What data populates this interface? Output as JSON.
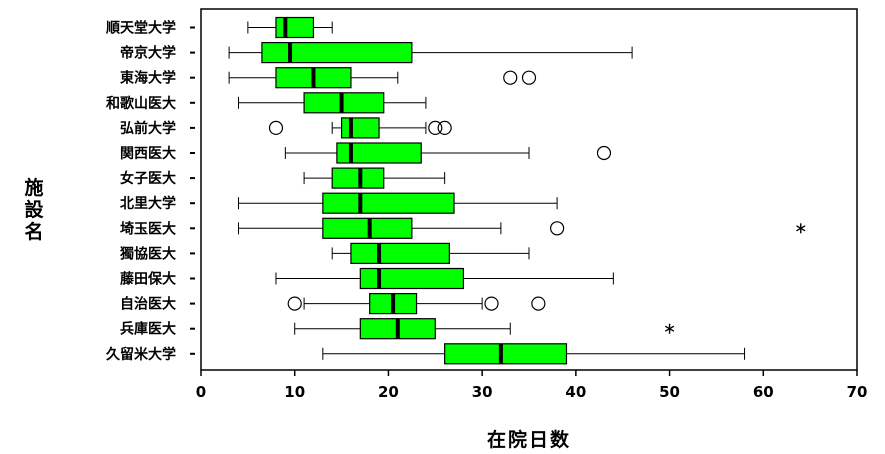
{
  "chart_data": {
    "type": "boxplot",
    "orientation": "horizontal",
    "title": "",
    "xlabel": "在院日数",
    "ylabel": "施設名",
    "xlim": [
      0,
      70
    ],
    "xticks": [
      "0",
      "10",
      "20",
      "30",
      "40",
      "50",
      "60",
      "70"
    ],
    "grid": false,
    "colors": {
      "box_fill": "#00ff00",
      "box_stroke": "#000000",
      "median": "#000000",
      "background": "#ffffff"
    },
    "categories": [
      "順天堂大学",
      "帝京大学",
      "東海大学",
      "和歌山医大",
      "弘前大学",
      "関西医大",
      "女子医大",
      "北里大学",
      "埼玉医大",
      "獨協医大",
      "藤田保大",
      "自治医大",
      "兵庫医大",
      "久留米大学"
    ],
    "boxes": [
      {
        "name": "順天堂大学",
        "whisker_low": 5,
        "q1": 8,
        "median": 9,
        "q3": 12,
        "whisker_high": 14,
        "outliers": [],
        "extremes": []
      },
      {
        "name": "帝京大学",
        "whisker_low": 3,
        "q1": 6.5,
        "median": 9.5,
        "q3": 22.5,
        "whisker_high": 46,
        "outliers": [],
        "extremes": []
      },
      {
        "name": "東海大学",
        "whisker_low": 3,
        "q1": 8,
        "median": 12,
        "q3": 16,
        "whisker_high": 21,
        "outliers": [
          33,
          35
        ],
        "extremes": []
      },
      {
        "name": "和歌山医大",
        "whisker_low": 4,
        "q1": 11,
        "median": 15,
        "q3": 19.5,
        "whisker_high": 24,
        "outliers": [],
        "extremes": []
      },
      {
        "name": "弘前大学",
        "whisker_low": 14,
        "q1": 15,
        "median": 16,
        "q3": 19,
        "whisker_high": 24,
        "outliers": [
          8,
          25,
          26
        ],
        "extremes": []
      },
      {
        "name": "関西医大",
        "whisker_low": 9,
        "q1": 14.5,
        "median": 16,
        "q3": 23.5,
        "whisker_high": 35,
        "outliers": [
          43
        ],
        "extremes": []
      },
      {
        "name": "女子医大",
        "whisker_low": 11,
        "q1": 14,
        "median": 17,
        "q3": 19.5,
        "whisker_high": 26,
        "outliers": [],
        "extremes": []
      },
      {
        "name": "北里大学",
        "whisker_low": 4,
        "q1": 13,
        "median": 17,
        "q3": 27,
        "whisker_high": 38,
        "outliers": [],
        "extremes": []
      },
      {
        "name": "埼玉医大",
        "whisker_low": 4,
        "q1": 13,
        "median": 18,
        "q3": 22.5,
        "whisker_high": 32,
        "outliers": [
          38
        ],
        "extremes": [
          64
        ]
      },
      {
        "name": "獨協医大",
        "whisker_low": 14,
        "q1": 16,
        "median": 19,
        "q3": 26.5,
        "whisker_high": 35,
        "outliers": [],
        "extremes": []
      },
      {
        "name": "藤田保大",
        "whisker_low": 8,
        "q1": 17,
        "median": 19,
        "q3": 28,
        "whisker_high": 44,
        "outliers": [],
        "extremes": []
      },
      {
        "name": "自治医大",
        "whisker_low": 11,
        "q1": 18,
        "median": 20.5,
        "q3": 23,
        "whisker_high": 30,
        "outliers": [
          10,
          31,
          36
        ],
        "extremes": []
      },
      {
        "name": "兵庫医大",
        "whisker_low": 10,
        "q1": 17,
        "median": 21,
        "q3": 25,
        "whisker_high": 33,
        "outliers": [],
        "extremes": [
          50
        ]
      },
      {
        "name": "久留米大学",
        "whisker_low": 13,
        "q1": 26,
        "median": 32,
        "q3": 39,
        "whisker_high": 58,
        "outliers": [],
        "extremes": []
      }
    ]
  }
}
